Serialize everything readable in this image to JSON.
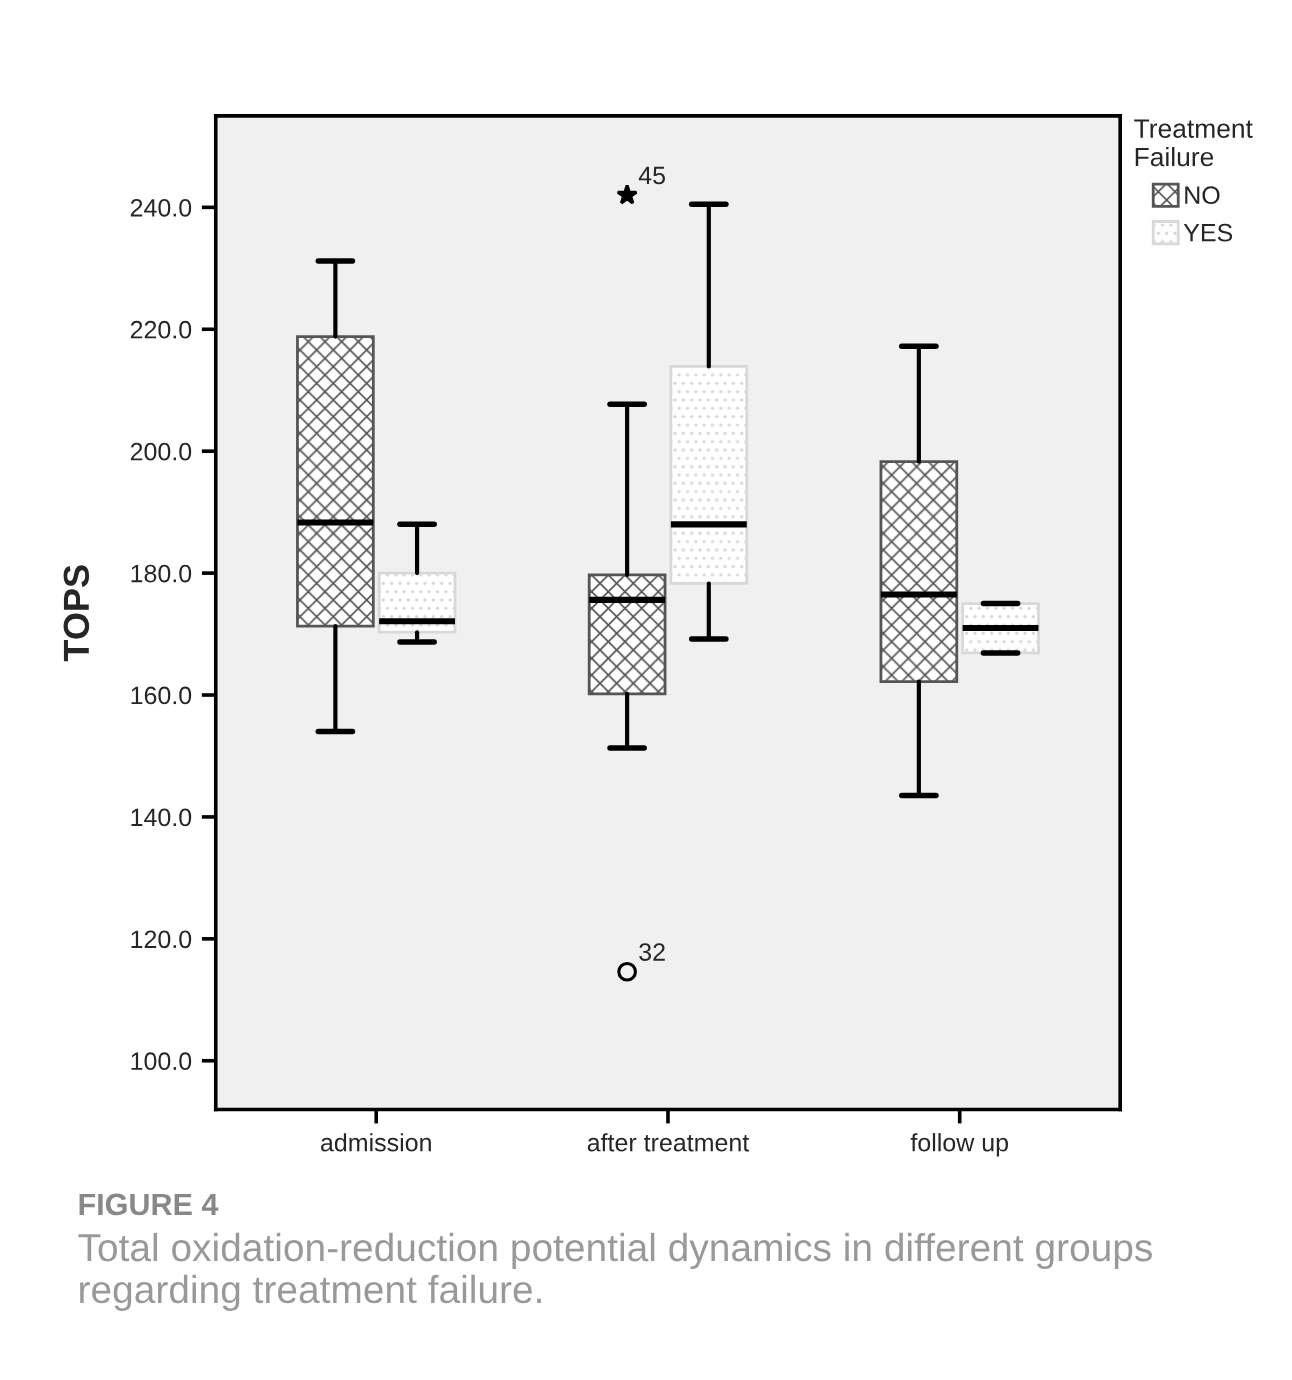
{
  "chart_data": {
    "type": "box",
    "categories": [
      "admission",
      "after treatment",
      "follow up"
    ],
    "ylabel": "TOPS",
    "legend_title": "Treatment\nFailure",
    "legend": "top right",
    "grid": false,
    "ylim": [
      92,
      255
    ],
    "yticks": [
      {
        "value": 100,
        "label": "100.0"
      },
      {
        "value": 120,
        "label": "120.0"
      },
      {
        "value": 140,
        "label": "140.0"
      },
      {
        "value": 160,
        "label": "160.0"
      },
      {
        "value": 180,
        "label": "180.0"
      },
      {
        "value": 200,
        "label": "200.0"
      },
      {
        "value": 220,
        "label": "220.0"
      },
      {
        "value": 240,
        "label": "240.0"
      }
    ],
    "series": [
      {
        "name": "NO",
        "color": "#555555",
        "boxes": [
          {
            "low": 154,
            "q1": 171.3,
            "median": 188.3,
            "q3": 218.8,
            "high": 231.2
          },
          {
            "low": 151.3,
            "q1": 160.2,
            "median": 175.6,
            "q3": 179.7,
            "high": 207.7,
            "outliers": [
              242,
              114.6
            ]
          },
          {
            "low": 143.5,
            "q1": 162.2,
            "median": 176.5,
            "q3": 198.3,
            "high": 217.2
          }
        ]
      },
      {
        "name": "YES",
        "color": "#d8d8d8",
        "boxes": [
          {
            "low": 168.7,
            "q1": 170.3,
            "median": 172.1,
            "q3": 180.0,
            "high": 188.0
          },
          {
            "low": 169.2,
            "q1": 178.3,
            "median": 188.0,
            "q3": 213.9,
            "high": 240.5
          },
          {
            "low": 166.9,
            "q1": 166.9,
            "median": 171.0,
            "q3": 175.0,
            "high": 175.0
          }
        ]
      }
    ],
    "annotations": [
      "45",
      "32",
      "FIGURE 4",
      "Total oxidation-reduction potential dynamics in different groups regarding treatment failure."
    ]
  }
}
